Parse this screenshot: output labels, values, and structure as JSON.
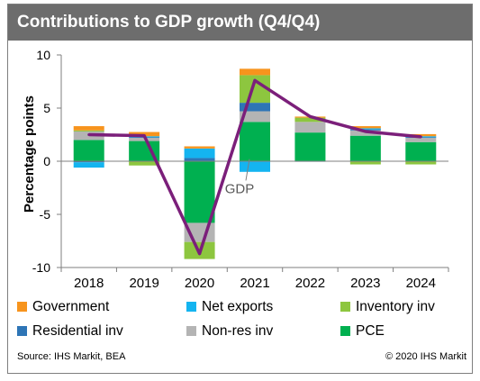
{
  "title": "Contributions to GDP growth (Q4/Q4)",
  "source": "Source: IHS Markit, BEA",
  "copyright": "© 2020 IHS Markit",
  "chart_data": {
    "type": "bar",
    "stacked": true,
    "ylabel": "Percentage points",
    "ylim": [
      -10,
      10
    ],
    "yticks": [
      -10,
      -5,
      0,
      5,
      10
    ],
    "grid": false,
    "legend_position": "bottom",
    "categories": [
      "2018",
      "2019",
      "2020",
      "2021",
      "2022",
      "2023",
      "2024"
    ],
    "series": [
      {
        "name": "PCE",
        "color": "#00b050",
        "values": [
          2.0,
          1.9,
          -5.8,
          3.7,
          2.7,
          2.4,
          1.8
        ]
      },
      {
        "name": "Non-res inv",
        "color": "#b4b4b4",
        "values": [
          0.8,
          0.3,
          -1.8,
          1.0,
          1.0,
          0.5,
          0.4
        ]
      },
      {
        "name": "Residential inv",
        "color": "#2e75b6",
        "values": [
          -0.1,
          0.05,
          0.3,
          0.8,
          -0.05,
          0.1,
          0.05
        ]
      },
      {
        "name": "Inventory inv",
        "color": "#8dc63f",
        "values": [
          0.1,
          -0.4,
          -1.6,
          2.6,
          0.4,
          -0.3,
          -0.3
        ]
      },
      {
        "name": "Net exports",
        "color": "#14b4f0",
        "values": [
          -0.5,
          0.1,
          0.9,
          -1.0,
          0.0,
          0.1,
          0.1
        ]
      },
      {
        "name": "Government",
        "color": "#f7941d",
        "values": [
          0.4,
          0.4,
          0.2,
          0.6,
          0.1,
          0.2,
          0.2
        ]
      }
    ],
    "line": {
      "name": "GDP",
      "color": "#7b1f7a",
      "values": [
        2.5,
        2.4,
        -8.7,
        7.6,
        4.2,
        2.8,
        2.3
      ]
    },
    "annotations": [
      {
        "text": "GDP"
      }
    ]
  }
}
